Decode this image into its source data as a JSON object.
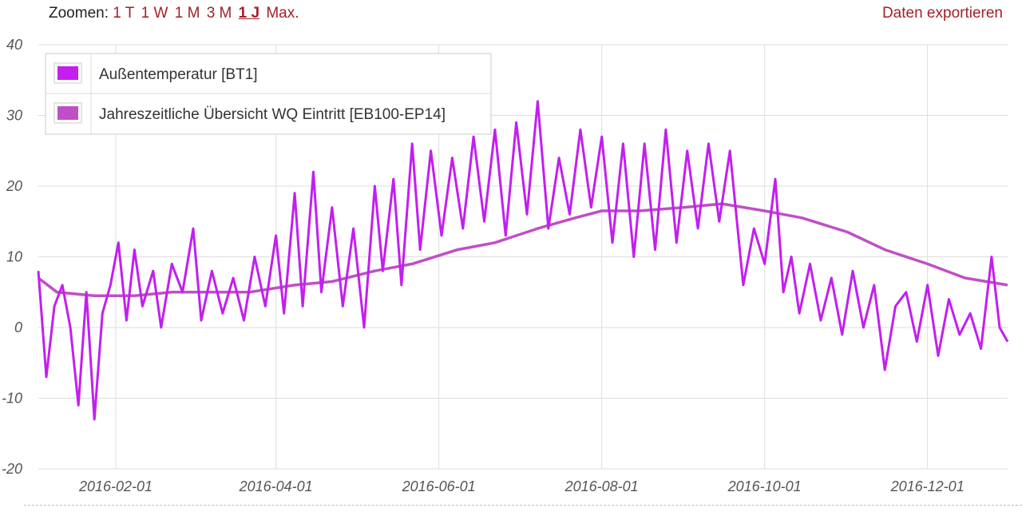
{
  "toolbar": {
    "zoom_label": "Zoomen:",
    "zoom_options": [
      {
        "label": "1 T",
        "active": false
      },
      {
        "label": "1 W",
        "active": false
      },
      {
        "label": "1 M",
        "active": false
      },
      {
        "label": "3 M",
        "active": false
      },
      {
        "label": "1 J",
        "active": true
      },
      {
        "label": "Max.",
        "active": false
      }
    ],
    "export_label": "Daten exportieren"
  },
  "colors": {
    "series_outdoor": "#c21ff0",
    "series_source": "#bf4fc6",
    "link": "#a31f28",
    "grid": "#dddddd"
  },
  "chart_data": {
    "type": "line",
    "y_ticks": [
      "40",
      "30",
      "20",
      "10",
      "0",
      "-10",
      "-20"
    ],
    "ylim": [
      -20,
      40
    ],
    "x_ticks": [
      "2016-02-01",
      "2016-04-01",
      "2016-06-01",
      "2016-08-01",
      "2016-10-01",
      "2016-12-01"
    ],
    "xlim": [
      "2016-01-03",
      "2016-12-31"
    ],
    "grid": true,
    "legend_position": "top-left",
    "series": [
      {
        "name": "Außentemperatur [BT1]",
        "color": "#c21ff0",
        "points": [
          [
            "2016-01-03",
            8
          ],
          [
            "2016-01-06",
            -7
          ],
          [
            "2016-01-09",
            3
          ],
          [
            "2016-01-12",
            6
          ],
          [
            "2016-01-15",
            0
          ],
          [
            "2016-01-18",
            -11
          ],
          [
            "2016-01-21",
            5
          ],
          [
            "2016-01-24",
            -13
          ],
          [
            "2016-01-27",
            2
          ],
          [
            "2016-01-30",
            6
          ],
          [
            "2016-02-02",
            12
          ],
          [
            "2016-02-05",
            1
          ],
          [
            "2016-02-08",
            11
          ],
          [
            "2016-02-11",
            3
          ],
          [
            "2016-02-15",
            8
          ],
          [
            "2016-02-18",
            0
          ],
          [
            "2016-02-22",
            9
          ],
          [
            "2016-02-26",
            5
          ],
          [
            "2016-03-01",
            14
          ],
          [
            "2016-03-04",
            1
          ],
          [
            "2016-03-08",
            8
          ],
          [
            "2016-03-12",
            2
          ],
          [
            "2016-03-16",
            7
          ],
          [
            "2016-03-20",
            1
          ],
          [
            "2016-03-24",
            10
          ],
          [
            "2016-03-28",
            3
          ],
          [
            "2016-04-01",
            13
          ],
          [
            "2016-04-04",
            2
          ],
          [
            "2016-04-08",
            19
          ],
          [
            "2016-04-11",
            3
          ],
          [
            "2016-04-15",
            22
          ],
          [
            "2016-04-18",
            5
          ],
          [
            "2016-04-22",
            17
          ],
          [
            "2016-04-26",
            3
          ],
          [
            "2016-04-30",
            14
          ],
          [
            "2016-05-04",
            0
          ],
          [
            "2016-05-08",
            20
          ],
          [
            "2016-05-11",
            8
          ],
          [
            "2016-05-15",
            21
          ],
          [
            "2016-05-18",
            6
          ],
          [
            "2016-05-22",
            26
          ],
          [
            "2016-05-25",
            11
          ],
          [
            "2016-05-29",
            25
          ],
          [
            "2016-06-02",
            13
          ],
          [
            "2016-06-06",
            24
          ],
          [
            "2016-06-10",
            14
          ],
          [
            "2016-06-14",
            27
          ],
          [
            "2016-06-18",
            15
          ],
          [
            "2016-06-22",
            28
          ],
          [
            "2016-06-26",
            13
          ],
          [
            "2016-06-30",
            29
          ],
          [
            "2016-07-04",
            16
          ],
          [
            "2016-07-08",
            32
          ],
          [
            "2016-07-12",
            14
          ],
          [
            "2016-07-16",
            24
          ],
          [
            "2016-07-20",
            16
          ],
          [
            "2016-07-24",
            28
          ],
          [
            "2016-07-28",
            17
          ],
          [
            "2016-08-01",
            27
          ],
          [
            "2016-08-05",
            12
          ],
          [
            "2016-08-09",
            26
          ],
          [
            "2016-08-13",
            10
          ],
          [
            "2016-08-17",
            26
          ],
          [
            "2016-08-21",
            11
          ],
          [
            "2016-08-25",
            28
          ],
          [
            "2016-08-29",
            12
          ],
          [
            "2016-09-02",
            25
          ],
          [
            "2016-09-06",
            14
          ],
          [
            "2016-09-10",
            26
          ],
          [
            "2016-09-14",
            15
          ],
          [
            "2016-09-18",
            25
          ],
          [
            "2016-09-23",
            6
          ],
          [
            "2016-09-27",
            14
          ],
          [
            "2016-10-01",
            9
          ],
          [
            "2016-10-05",
            21
          ],
          [
            "2016-10-08",
            5
          ],
          [
            "2016-10-11",
            10
          ],
          [
            "2016-10-14",
            2
          ],
          [
            "2016-10-18",
            9
          ],
          [
            "2016-10-22",
            1
          ],
          [
            "2016-10-26",
            7
          ],
          [
            "2016-10-30",
            -1
          ],
          [
            "2016-11-03",
            8
          ],
          [
            "2016-11-07",
            0
          ],
          [
            "2016-11-11",
            6
          ],
          [
            "2016-11-15",
            -6
          ],
          [
            "2016-11-19",
            3
          ],
          [
            "2016-11-23",
            5
          ],
          [
            "2016-11-27",
            -2
          ],
          [
            "2016-12-01",
            6
          ],
          [
            "2016-12-05",
            -4
          ],
          [
            "2016-12-09",
            4
          ],
          [
            "2016-12-13",
            -1
          ],
          [
            "2016-12-17",
            2
          ],
          [
            "2016-12-21",
            -3
          ],
          [
            "2016-12-25",
            10
          ],
          [
            "2016-12-28",
            0
          ],
          [
            "2016-12-31",
            -2
          ]
        ]
      },
      {
        "name": "Jahreszeitliche Übersicht WQ Eintritt [EB100-EP14]",
        "color": "#bf4fc6",
        "points": [
          [
            "2016-01-03",
            7
          ],
          [
            "2016-01-10",
            5
          ],
          [
            "2016-01-24",
            4.5
          ],
          [
            "2016-02-08",
            4.5
          ],
          [
            "2016-02-22",
            5
          ],
          [
            "2016-03-08",
            5
          ],
          [
            "2016-03-22",
            5
          ],
          [
            "2016-04-08",
            6
          ],
          [
            "2016-04-22",
            6.5
          ],
          [
            "2016-05-08",
            8
          ],
          [
            "2016-05-22",
            9
          ],
          [
            "2016-06-08",
            11
          ],
          [
            "2016-06-22",
            12
          ],
          [
            "2016-07-08",
            14
          ],
          [
            "2016-07-22",
            15.5
          ],
          [
            "2016-08-01",
            16.5
          ],
          [
            "2016-08-15",
            16.5
          ],
          [
            "2016-09-01",
            17
          ],
          [
            "2016-09-15",
            17.5
          ],
          [
            "2016-10-01",
            16.5
          ],
          [
            "2016-10-15",
            15.5
          ],
          [
            "2016-11-01",
            13.5
          ],
          [
            "2016-11-15",
            11
          ],
          [
            "2016-12-01",
            9
          ],
          [
            "2016-12-15",
            7
          ],
          [
            "2016-12-31",
            6
          ]
        ]
      }
    ]
  }
}
